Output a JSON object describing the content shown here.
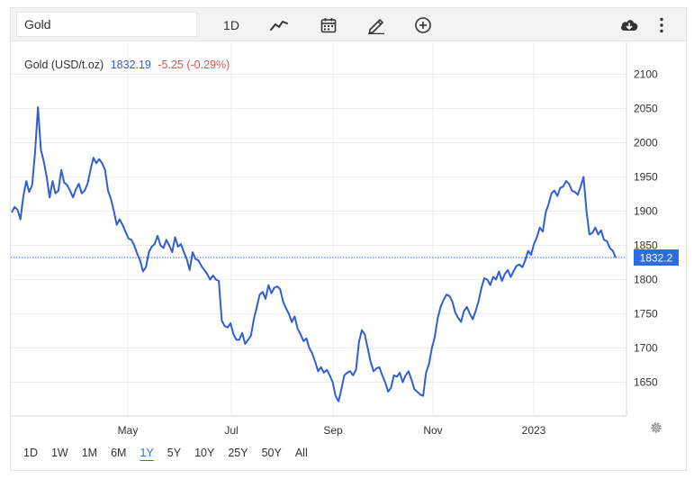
{
  "toolbar": {
    "symbol_value": "Gold",
    "interval_label": "1D",
    "icons": [
      "line-chart-icon",
      "calendar-icon",
      "pencil-icon",
      "plus-circle-icon",
      "cloud-download-icon",
      "more-vertical-icon"
    ]
  },
  "legend": {
    "name": "Gold (USD/t.oz)",
    "price": "1832.19",
    "change": "-5.25 (-0.29%)"
  },
  "ranges": [
    "1D",
    "1W",
    "1M",
    "6M",
    "1Y",
    "5Y",
    "10Y",
    "25Y",
    "50Y",
    "All"
  ],
  "active_range": "1Y",
  "colors": {
    "line": "#2f5fd3",
    "change_negative": "#e05252",
    "last_price_tag": "#2f6be0"
  },
  "chart_data": {
    "type": "line",
    "title": "",
    "xlabel": "",
    "ylabel": "",
    "x_tick_labels": [
      "May",
      "Jul",
      "Sep",
      "Nov",
      "2023"
    ],
    "y_ticks": [
      1650,
      1700,
      1750,
      1800,
      1850,
      1900,
      1950,
      2000,
      2050,
      2100
    ],
    "ylim": [
      1600,
      2120
    ],
    "grid": true,
    "last_price_label": "1832.2",
    "series": [
      {
        "values": [
          1898,
          1906,
          1902,
          1888,
          1922,
          1944,
          1928,
          1938,
          1985,
          2052,
          1990,
          1972,
          1950,
          1920,
          1944,
          1926,
          1930,
          1960,
          1942,
          1938,
          1930,
          1920,
          1932,
          1940,
          1926,
          1930,
          1940,
          1960,
          1978,
          1970,
          1976,
          1970,
          1960,
          1930,
          1918,
          1900,
          1880,
          1888,
          1880,
          1870,
          1860,
          1858,
          1850,
          1838,
          1828,
          1812,
          1818,
          1840,
          1848,
          1852,
          1864,
          1850,
          1846,
          1858,
          1850,
          1840,
          1862,
          1848,
          1852,
          1840,
          1830,
          1814,
          1840,
          1830,
          1828,
          1820,
          1814,
          1808,
          1800,
          1806,
          1800,
          1798,
          1740,
          1732,
          1730,
          1736,
          1720,
          1712,
          1712,
          1722,
          1706,
          1712,
          1718,
          1742,
          1760,
          1778,
          1782,
          1772,
          1792,
          1780,
          1788,
          1790,
          1786,
          1768,
          1758,
          1750,
          1738,
          1746,
          1728,
          1720,
          1710,
          1714,
          1700,
          1692,
          1680,
          1666,
          1672,
          1664,
          1668,
          1660,
          1650,
          1630,
          1622,
          1640,
          1660,
          1664,
          1666,
          1660,
          1668,
          1708,
          1726,
          1720,
          1700,
          1680,
          1666,
          1670,
          1672,
          1660,
          1650,
          1636,
          1642,
          1660,
          1658,
          1664,
          1650,
          1660,
          1666,
          1654,
          1640,
          1636,
          1632,
          1630,
          1664,
          1676,
          1700,
          1716,
          1744,
          1760,
          1770,
          1778,
          1776,
          1768,
          1752,
          1744,
          1738,
          1754,
          1760,
          1750,
          1742,
          1754,
          1768,
          1788,
          1802,
          1800,
          1792,
          1804,
          1800,
          1812,
          1798,
          1808,
          1814,
          1804,
          1812,
          1820,
          1822,
          1818,
          1828,
          1842,
          1836,
          1852,
          1862,
          1876,
          1870,
          1898,
          1910,
          1926,
          1930,
          1922,
          1934,
          1936,
          1944,
          1940,
          1930,
          1928,
          1924,
          1936,
          1950,
          1900,
          1866,
          1868,
          1876,
          1866,
          1872,
          1858,
          1856,
          1846,
          1842,
          1832
        ]
      }
    ]
  }
}
